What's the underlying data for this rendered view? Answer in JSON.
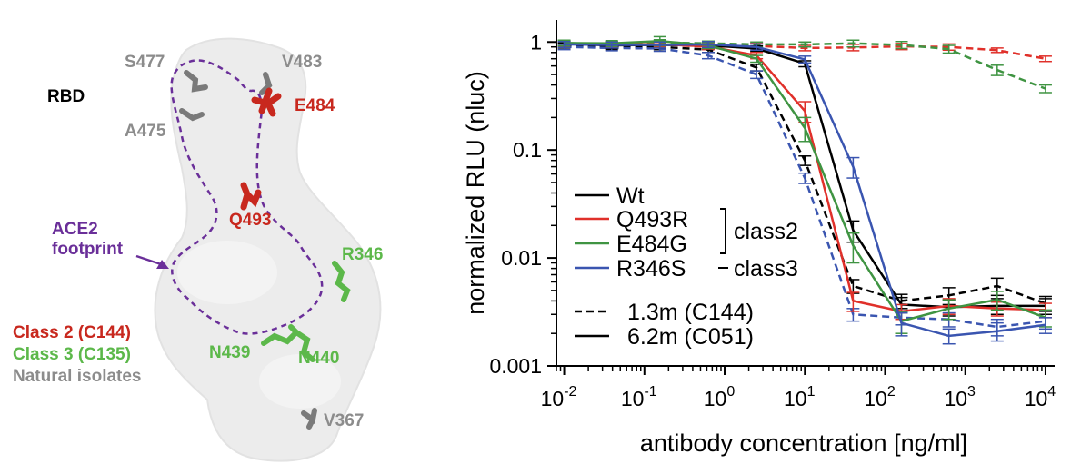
{
  "structure_panel": {
    "title": "RBD",
    "residues": {
      "s477": "S477",
      "v483": "V483",
      "e484": "E484",
      "a475": "A475",
      "q493": "Q493",
      "r346": "R346",
      "n439": "N439",
      "n440": "N440",
      "v367": "V367"
    },
    "ace2_label_line1": "ACE2",
    "ace2_label_line2": "footprint",
    "legend": {
      "class2": "Class 2 (C144)",
      "class3": "Class 3 (C135)",
      "natural": "Natural isolates"
    },
    "colors": {
      "class2": "#c8281e",
      "class3": "#5cb84a",
      "natural": "#8c8c8c",
      "ace2": "#6a2f99",
      "surface": "#ececec"
    }
  },
  "chart_data": {
    "type": "line",
    "xlabel": "antibody concentration [ng/ml]",
    "ylabel": "normalized RLU (nluc)",
    "x_scale": "log",
    "y_scale": "log",
    "xlim": [
      0.008,
      13000
    ],
    "ylim": [
      0.001,
      1.6
    ],
    "x_ticks": [
      {
        "value": 0.01,
        "base": "10",
        "exp": "-2"
      },
      {
        "value": 0.1,
        "base": "10",
        "exp": "-1"
      },
      {
        "value": 1,
        "base": "10",
        "exp": "0"
      },
      {
        "value": 10,
        "base": "10",
        "exp": "1"
      },
      {
        "value": 100,
        "base": "10",
        "exp": "2"
      },
      {
        "value": 1000,
        "base": "10",
        "exp": "3"
      },
      {
        "value": 10000,
        "base": "10",
        "exp": "4"
      }
    ],
    "y_ticks": [
      {
        "value": 1,
        "label": "1"
      },
      {
        "value": 0.1,
        "label": "0.1"
      },
      {
        "value": 0.01,
        "label": "0.01"
      },
      {
        "value": 0.001,
        "label": "0.001"
      }
    ],
    "x": [
      0.01,
      0.039,
      0.156,
      0.625,
      2.5,
      10,
      40,
      160,
      625,
      2500,
      10000
    ],
    "series": [
      {
        "name": "Wt",
        "antibody": "6.2m (C051)",
        "color": "#000000",
        "dash": false,
        "values": [
          0.96,
          0.93,
          0.94,
          0.93,
          0.87,
          0.63,
          0.018,
          0.0037,
          0.0035,
          0.0036,
          0.0036
        ],
        "err": [
          0.06,
          0.06,
          0.06,
          0.06,
          0.05,
          0.04,
          0.004,
          0.0006,
          0.0006,
          0.0006,
          0.0006
        ]
      },
      {
        "name": "Q493R",
        "antibody": "6.2m (C051)",
        "color": "#e0302a",
        "dash": false,
        "values": [
          0.96,
          0.95,
          0.95,
          0.91,
          0.75,
          0.23,
          0.004,
          0.0032,
          0.0036,
          0.0034,
          0.0033
        ],
        "err": [
          0.05,
          0.05,
          0.05,
          0.05,
          0.05,
          0.05,
          0.0008,
          0.0005,
          0.0006,
          0.0005,
          0.0005
        ]
      },
      {
        "name": "E484G",
        "antibody": "6.2m (C051)",
        "color": "#3f9442",
        "dash": false,
        "values": [
          0.98,
          0.97,
          1.02,
          0.93,
          0.7,
          0.16,
          0.013,
          0.0026,
          0.0034,
          0.0041,
          0.0028
        ],
        "err": [
          0.06,
          0.06,
          0.1,
          0.06,
          0.05,
          0.04,
          0.004,
          0.0006,
          0.0007,
          0.0008,
          0.0005
        ]
      },
      {
        "name": "R346S",
        "antibody": "6.2m (C051)",
        "color": "#3a55b0",
        "dash": false,
        "values": [
          0.95,
          0.94,
          0.94,
          0.95,
          0.9,
          0.69,
          0.07,
          0.0025,
          0.0019,
          0.0021,
          0.0024
        ],
        "err": [
          0.06,
          0.06,
          0.06,
          0.06,
          0.06,
          0.05,
          0.015,
          0.0006,
          0.0003,
          0.0004,
          0.0004
        ]
      },
      {
        "name": "Wt",
        "antibody": "1.3m (C144)",
        "color": "#000000",
        "dash": true,
        "values": [
          0.93,
          0.9,
          0.9,
          0.85,
          0.58,
          0.08,
          0.0055,
          0.004,
          0.0045,
          0.0055,
          0.0038
        ],
        "err": [
          0.05,
          0.05,
          0.05,
          0.05,
          0.04,
          0.008,
          0.0008,
          0.0006,
          0.0008,
          0.001,
          0.0006
        ]
      },
      {
        "name": "Q493R",
        "antibody": "1.3m (C144)",
        "color": "#e0302a",
        "dash": true,
        "values": [
          0.97,
          0.96,
          0.95,
          0.9,
          0.92,
          0.88,
          0.89,
          0.91,
          0.9,
          0.84,
          0.7
        ],
        "err": [
          0.05,
          0.05,
          0.05,
          0.05,
          0.05,
          0.05,
          0.06,
          0.06,
          0.06,
          0.04,
          0.04
        ]
      },
      {
        "name": "E484G",
        "antibody": "1.3m (C144)",
        "color": "#3f9442",
        "dash": true,
        "values": [
          0.97,
          0.96,
          0.99,
          0.97,
          0.95,
          0.95,
          0.97,
          0.94,
          0.86,
          0.55,
          0.37
        ],
        "err": [
          0.05,
          0.05,
          0.06,
          0.05,
          0.05,
          0.05,
          0.07,
          0.07,
          0.07,
          0.06,
          0.03
        ]
      },
      {
        "name": "R346S",
        "antibody": "1.3m (C144)",
        "color": "#3a55b0",
        "dash": true,
        "values": [
          0.9,
          0.88,
          0.87,
          0.75,
          0.5,
          0.055,
          0.003,
          0.0028,
          0.0027,
          0.0023,
          0.0026
        ],
        "err": [
          0.05,
          0.05,
          0.05,
          0.05,
          0.04,
          0.006,
          0.0004,
          0.0004,
          0.0004,
          0.0004,
          0.0004
        ]
      }
    ],
    "legend": {
      "wt": "Wt",
      "q493r": "Q493R",
      "e484g": "E484G",
      "r346s": "R346S",
      "class2": "class2",
      "class3": "class3",
      "c144": "1.3m (C144)",
      "c051": "6.2m (C051)"
    }
  }
}
